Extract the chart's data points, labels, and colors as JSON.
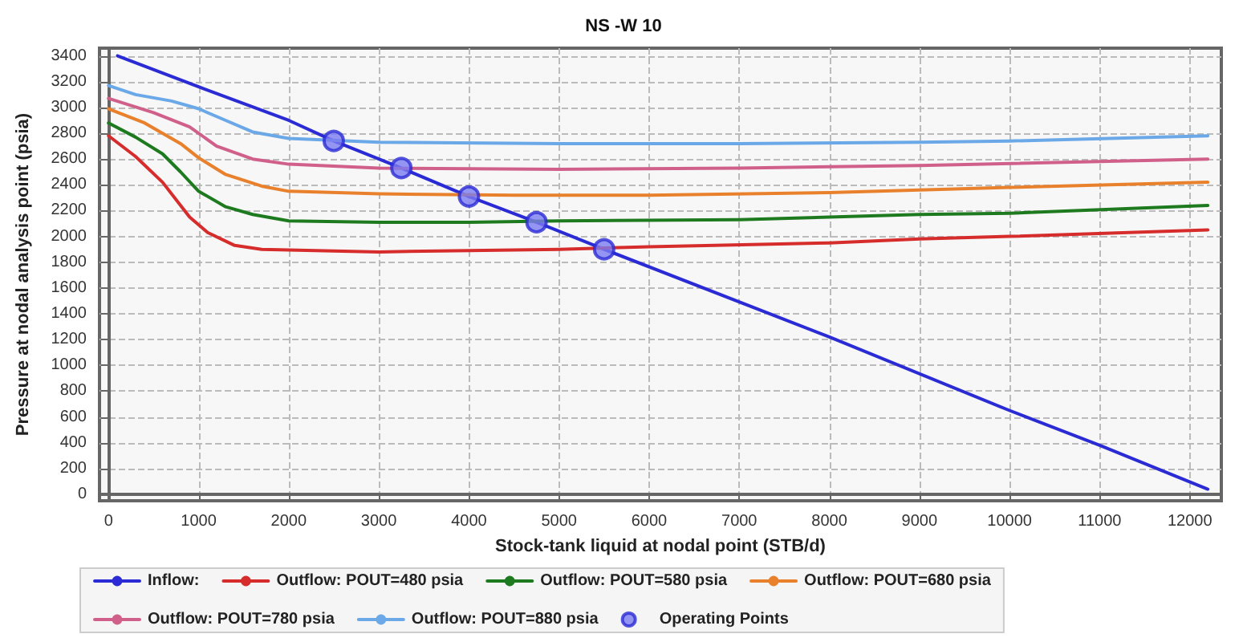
{
  "chart_data": {
    "type": "line",
    "title": "NS -W 10",
    "xlabel": "Stock-tank liquid at nodal point (STB/d)",
    "ylabel": "Pressure at nodal analysis point (psia)",
    "xlim": [
      -100,
      12350
    ],
    "xticks": [
      0,
      1000,
      2000,
      3000,
      4000,
      5000,
      6000,
      7000,
      8000,
      9000,
      10000,
      11000,
      12000
    ],
    "ylim": [
      -50,
      3460
    ],
    "yticks": [
      0,
      200,
      400,
      600,
      800,
      1000,
      1200,
      1400,
      1600,
      1800,
      2000,
      2200,
      2400,
      2600,
      2800,
      3000,
      3200,
      3400
    ],
    "grid": true,
    "legend": "bottom",
    "marker": "none",
    "line_style": "solid",
    "series": [
      {
        "name": "Inflow:",
        "color": "#2b2bd6",
        "x": [
          100,
          1000,
          2000,
          2500,
          3250,
          4000,
          4750,
          5500,
          8000,
          10000,
          11000,
          12200
        ],
        "values": [
          3400,
          3160,
          2900,
          2740,
          2530,
          2310,
          2110,
          1900,
          1220,
          650,
          380,
          40
        ]
      },
      {
        "name": "Outflow: POUT=480 psia",
        "color": "#d62c2c",
        "x": [
          0,
          300,
          600,
          900,
          1100,
          1400,
          1700,
          3000,
          4000,
          5000,
          6000,
          8000,
          9000,
          10000,
          12200
        ],
        "values": [
          2780,
          2620,
          2420,
          2150,
          2030,
          1930,
          1900,
          1880,
          1890,
          1900,
          1920,
          1950,
          1980,
          2000,
          2050
        ]
      },
      {
        "name": "Outflow: POUT=580 psia",
        "color": "#1e7a1e",
        "x": [
          0,
          300,
          600,
          800,
          1000,
          1300,
          1600,
          2000,
          3000,
          4000,
          5000,
          7000,
          9000,
          10000,
          12200
        ],
        "values": [
          2880,
          2770,
          2640,
          2500,
          2350,
          2230,
          2170,
          2120,
          2110,
          2110,
          2120,
          2130,
          2170,
          2180,
          2240
        ]
      },
      {
        "name": "Outflow: POUT=680 psia",
        "color": "#e8802c",
        "x": [
          0,
          400,
          800,
          1000,
          1300,
          1700,
          2000,
          3000,
          4500,
          6000,
          8000,
          10000,
          12200
        ],
        "values": [
          2990,
          2880,
          2720,
          2610,
          2480,
          2390,
          2350,
          2330,
          2320,
          2320,
          2340,
          2380,
          2420
        ]
      },
      {
        "name": "Outflow: POUT=780 psia",
        "color": "#d0608a",
        "x": [
          0,
          500,
          900,
          1200,
          1600,
          2000,
          3000,
          5000,
          7000,
          9000,
          12200
        ],
        "values": [
          3070,
          2960,
          2850,
          2700,
          2600,
          2560,
          2530,
          2520,
          2530,
          2550,
          2600
        ]
      },
      {
        "name": "Outflow: POUT=880 psia",
        "color": "#6aa8e8",
        "x": [
          0,
          300,
          700,
          1000,
          1300,
          1600,
          2000,
          3000,
          5000,
          7000,
          9000,
          10000,
          12200
        ],
        "values": [
          3170,
          3100,
          3050,
          2990,
          2900,
          2810,
          2760,
          2730,
          2720,
          2720,
          2730,
          2740,
          2780
        ]
      },
      {
        "name": "Operating Points",
        "type": "scatter",
        "marker": "circle",
        "color": "#7b7bf0",
        "x": [
          2500,
          3250,
          4000,
          4750,
          5500
        ],
        "values": [
          2740,
          2530,
          2310,
          2110,
          1900
        ]
      }
    ]
  }
}
